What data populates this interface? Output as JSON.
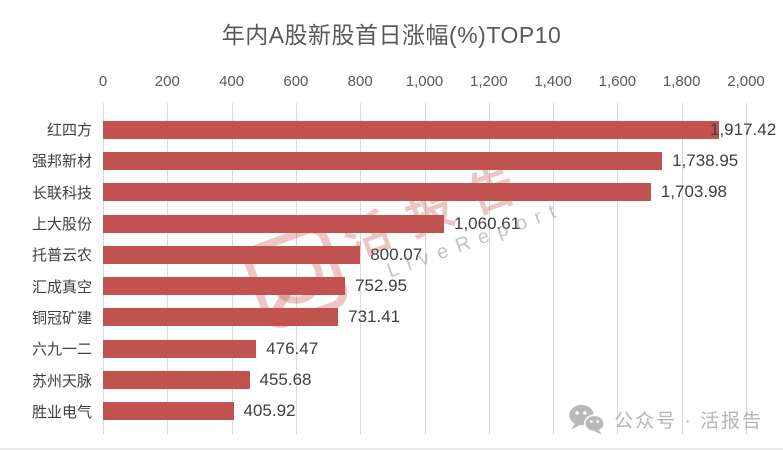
{
  "title": "年内A股新股首日涨幅(%)TOP10",
  "chart_data": {
    "type": "bar",
    "orientation": "horizontal",
    "title": "年内A股新股首日涨幅(%)TOP10",
    "xlabel": "",
    "ylabel": "",
    "categories": [
      "红四方",
      "强邦新材",
      "长联科技",
      "上大股份",
      "托普云农",
      "汇成真空",
      "铜冠矿建",
      "六九一二",
      "苏州天脉",
      "胜业电气"
    ],
    "values": [
      1917.42,
      1738.95,
      1703.98,
      1060.61,
      800.07,
      752.95,
      731.41,
      476.47,
      455.68,
      405.92
    ],
    "value_labels": [
      "1,917.42",
      "1,738.95",
      "1,703.98",
      "1,060.61",
      "800.07",
      "752.95",
      "731.41",
      "476.47",
      "455.68",
      "405.92"
    ],
    "xlim": [
      0,
      2000
    ],
    "x_ticks": [
      0,
      200,
      400,
      600,
      800,
      1000,
      1200,
      1400,
      1600,
      1800,
      2000
    ],
    "x_tick_labels": [
      "0",
      "200",
      "400",
      "600",
      "800",
      "1,000",
      "1,200",
      "1,400",
      "1,600",
      "1,800",
      "2,000"
    ],
    "grid": true,
    "legend": false,
    "bar_color": "#C05350"
  },
  "watermark": {
    "brand": "活报告",
    "brand_sub": "LiveReport",
    "logo_icon": "livereport-gauge-icon",
    "color": "#C0504D"
  },
  "footer": {
    "icon": "wechat-icon",
    "text": "公众号 · 活报告"
  },
  "colors": {
    "bar": "#C05350",
    "gridline": "#D9D9D9",
    "title_text": "#595959",
    "axis_text": "#595959",
    "label_text": "#3F3F3F",
    "footer_text": "#B5B5B5",
    "background": "#FFFFFF"
  }
}
